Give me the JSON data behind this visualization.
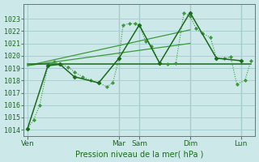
{
  "bg_color": "#cce8e8",
  "grid_color": "#a8d0d0",
  "line_color_dark": "#1a6b1a",
  "line_color_light": "#3a9b3a",
  "xlabel": "Pression niveau de la mer( hPa )",
  "xlabel_color": "#1a6b1a",
  "xtick_labels": [
    "Ven",
    "Mar",
    "Sam",
    "Dim",
    "Lun"
  ],
  "xtick_positions": [
    0.0,
    4.5,
    5.5,
    8.0,
    10.5
  ],
  "xlim": [
    -0.2,
    11.2
  ],
  "ylim": [
    1013.5,
    1024.2
  ],
  "yticks": [
    1014,
    1015,
    1016,
    1017,
    1018,
    1019,
    1020,
    1021,
    1022,
    1023
  ],
  "vline_positions": [
    4.5,
    5.5,
    8.0,
    10.5
  ],
  "dotted_x": [
    0.0,
    0.3,
    0.6,
    1.0,
    1.3,
    1.6,
    2.0,
    2.3,
    2.7,
    3.1,
    3.5,
    3.9,
    4.2,
    4.5,
    4.7,
    5.0,
    5.3,
    5.5,
    5.8,
    6.1,
    6.5,
    6.9,
    7.3,
    7.7,
    8.0,
    8.3,
    8.6,
    9.0,
    9.3,
    9.7,
    10.0,
    10.3,
    10.7,
    11.0
  ],
  "dotted_y": [
    1014.1,
    1014.8,
    1016.0,
    1019.2,
    1019.5,
    1019.3,
    1019.1,
    1018.7,
    1018.3,
    1018.0,
    1017.8,
    1017.5,
    1017.8,
    1019.8,
    1022.5,
    1022.6,
    1022.6,
    1022.5,
    1021.2,
    1020.8,
    1019.4,
    1019.3,
    1019.4,
    1023.5,
    1023.2,
    1022.2,
    1021.8,
    1021.5,
    1019.8,
    1019.8,
    1019.9,
    1017.7,
    1018.0,
    1019.6
  ],
  "solid_x": [
    0.0,
    1.0,
    1.6,
    2.3,
    3.5,
    4.5,
    5.5,
    6.5,
    8.0,
    9.3,
    10.5
  ],
  "solid_y": [
    1014.1,
    1019.2,
    1019.3,
    1018.3,
    1017.8,
    1019.8,
    1022.5,
    1019.4,
    1023.5,
    1019.8,
    1019.6
  ],
  "trend1_x": [
    0.0,
    8.0
  ],
  "trend1_y": [
    1019.2,
    1022.1
  ],
  "trend2_x": [
    0.0,
    8.0
  ],
  "trend2_y": [
    1019.2,
    1021.0
  ],
  "hline_y": 1019.35,
  "hline_x": [
    0.0,
    11.0
  ]
}
